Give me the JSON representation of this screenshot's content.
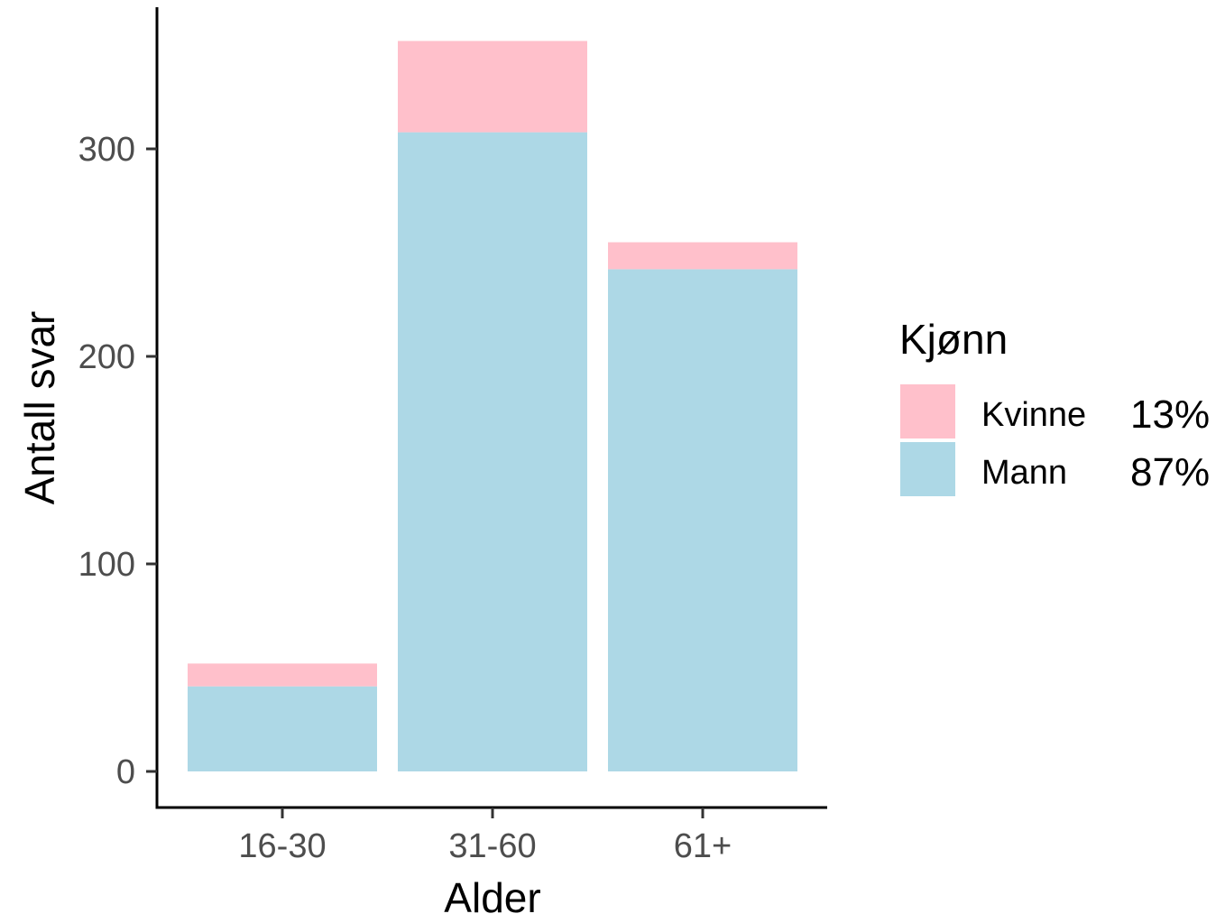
{
  "chart_data": {
    "type": "bar",
    "stacked": true,
    "xlabel": "Alder",
    "ylabel": "Antall svar",
    "categories": [
      "16-30",
      "31-60",
      "61+"
    ],
    "series": [
      {
        "name": "Mann",
        "values": [
          41,
          308,
          242
        ],
        "color": "#add8e6"
      },
      {
        "name": "Kvinne",
        "values": [
          11,
          44,
          13
        ],
        "color": "#ffc0cb"
      }
    ],
    "ylim": [
      0,
      370
    ],
    "yticks": [
      0,
      100,
      200,
      300
    ],
    "grid": false,
    "legend": {
      "title": "Kjønn",
      "position": "right",
      "items": [
        {
          "label": "Kvinne",
          "percent": "13%",
          "color": "#ffc0cb"
        },
        {
          "label": "Mann",
          "percent": "87%",
          "color": "#add8e6"
        }
      ]
    }
  }
}
